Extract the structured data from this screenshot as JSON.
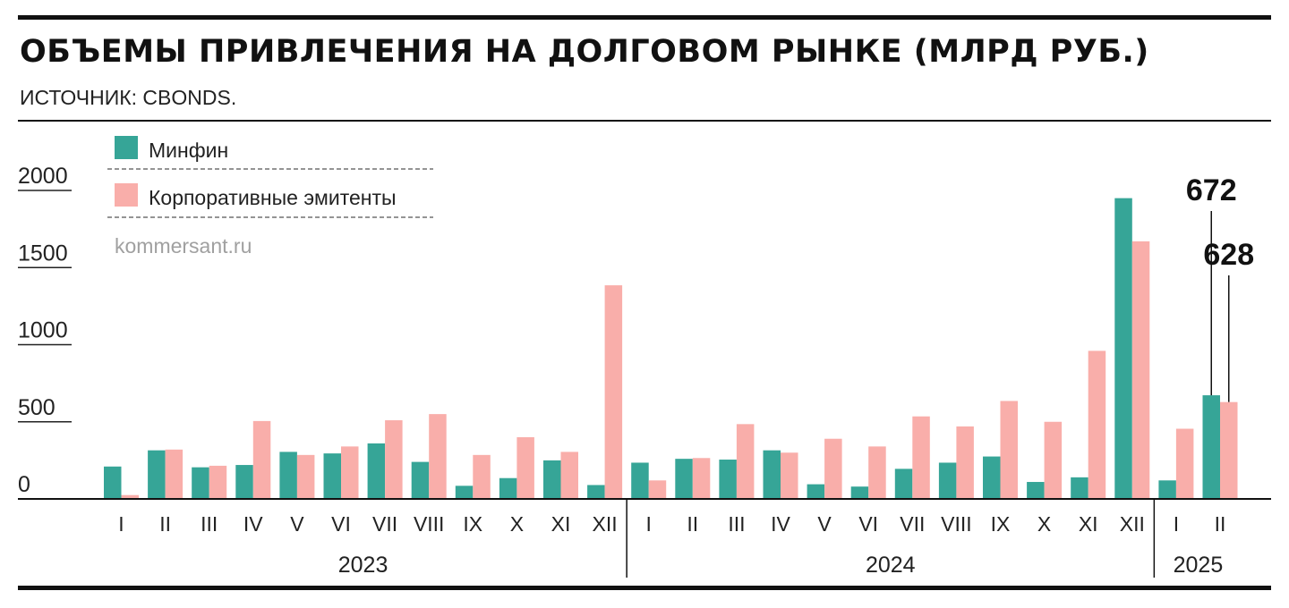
{
  "header": {
    "title": "ОБЪЕМЫ ПРИВЛЕЧЕНИЯ НА ДОЛГОВОМ РЫНКЕ (МЛРД РУБ.)",
    "source": "ИСТОЧНИК: CBONDS."
  },
  "watermark": "kommersant.ru",
  "colors": {
    "minfin": "#36a597",
    "corporate": "#f9aeaa",
    "text": "#111111"
  },
  "chart_data": {
    "type": "bar",
    "title": "ОБЪЕМЫ ПРИВЛЕЧЕНИЯ НА ДОЛГОВОМ РЫНКЕ (МЛРД РУБ.)",
    "xlabel": "",
    "ylabel": "",
    "ylim": [
      0,
      2000
    ],
    "yticks": [
      0,
      500,
      1000,
      1500,
      2000
    ],
    "grid": false,
    "legend_position": "top-left",
    "categories": [
      "I",
      "II",
      "III",
      "IV",
      "V",
      "VI",
      "VII",
      "VIII",
      "IX",
      "X",
      "XI",
      "XII",
      "I",
      "II",
      "III",
      "IV",
      "V",
      "VI",
      "VII",
      "VIII",
      "IX",
      "X",
      "XI",
      "XII",
      "I",
      "II"
    ],
    "year_groups": [
      {
        "label": "2023",
        "count": 12
      },
      {
        "label": "2024",
        "count": 12
      },
      {
        "label": "2025",
        "count": 2
      }
    ],
    "series": [
      {
        "name": "Минфин",
        "color": "#36a597",
        "values": [
          210,
          315,
          205,
          220,
          305,
          295,
          360,
          240,
          85,
          135,
          250,
          90,
          235,
          260,
          255,
          315,
          95,
          80,
          195,
          235,
          275,
          110,
          140,
          1950,
          120,
          672
        ]
      },
      {
        "name": "Корпоративные эмитенты",
        "color": "#f9aeaa",
        "values": [
          25,
          320,
          215,
          505,
          285,
          340,
          510,
          550,
          285,
          400,
          305,
          1385,
          120,
          265,
          485,
          300,
          390,
          340,
          535,
          470,
          635,
          500,
          960,
          1670,
          455,
          628
        ]
      }
    ],
    "annotations": [
      {
        "series": 0,
        "index": 25,
        "text": "672"
      },
      {
        "series": 1,
        "index": 25,
        "text": "628"
      }
    ]
  }
}
